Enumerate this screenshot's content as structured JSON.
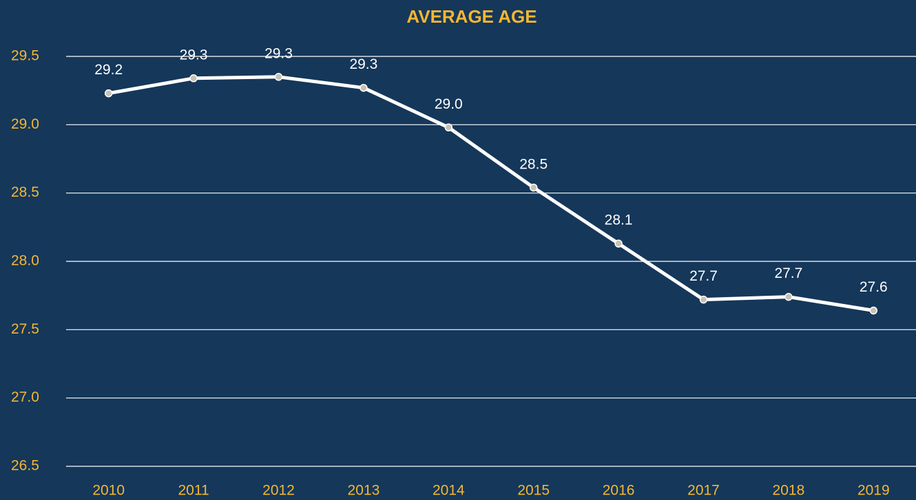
{
  "chart_data": {
    "type": "line",
    "title": "AVERAGE AGE",
    "categories": [
      "2010",
      "2011",
      "2012",
      "2013",
      "2014",
      "2015",
      "2016",
      "2017",
      "2018",
      "2019"
    ],
    "values": [
      29.23,
      29.34,
      29.35,
      29.27,
      28.98,
      28.54,
      28.13,
      27.72,
      27.74,
      27.64
    ],
    "value_labels": [
      "29.2",
      "29.3",
      "29.3",
      "29.3",
      "29.0",
      "28.5",
      "28.1",
      "27.7",
      "27.7",
      "27.6"
    ],
    "color": "#ffffff",
    "ylim": [
      26.5,
      29.5
    ],
    "yticks": [
      26.5,
      {
        "value": 27,
        "label": "27.0"
      },
      27.5,
      {
        "value": 28,
        "label": "28.0"
      },
      28.5,
      {
        "value": 29,
        "label": "29.0"
      },
      29.5
    ],
    "grid": true
  }
}
